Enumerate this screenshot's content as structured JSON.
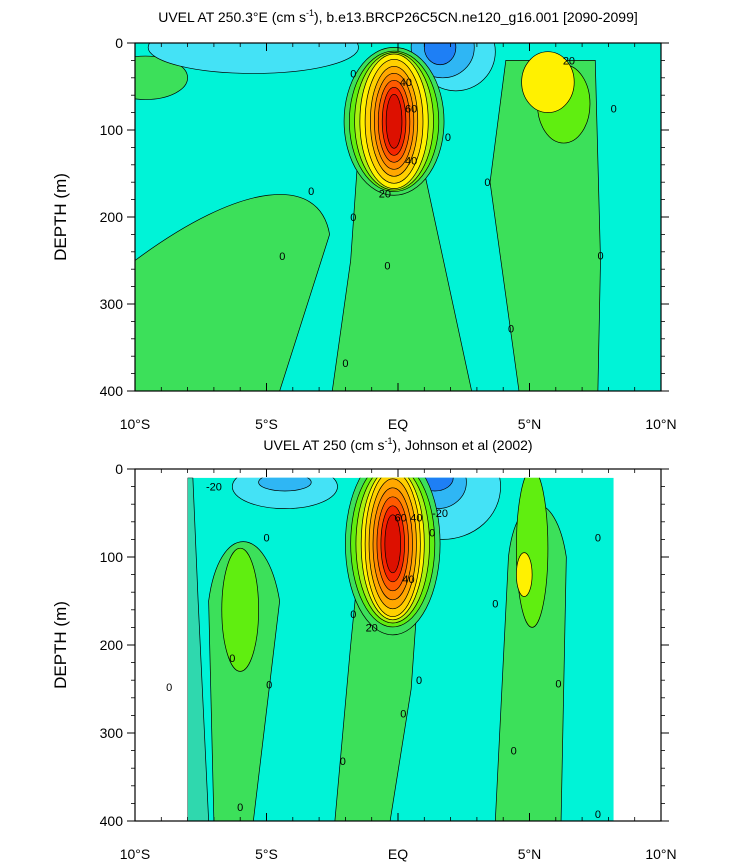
{
  "chart_data": [
    {
      "type": "heatmap",
      "title": "UVEL AT 250.3°E (cm s-1), b.e13.BRCP26C5CN.ne120_g16.001 [2090-2099]",
      "title_parts": {
        "pre": "UVEL AT 250.3°E (cm s",
        "sup": "-1",
        "post": "), b.e13.BRCP26C5CN.ne120_g16.001 [2090-2099]"
      },
      "xlabel": "",
      "ylabel": "DEPTH (m)",
      "x_ticks": [
        "10°S",
        "5°S",
        "EQ",
        "5°N",
        "10°N"
      ],
      "x_tick_values": [
        -10,
        -5,
        0,
        5,
        10
      ],
      "y_ticks": [
        "0",
        "100",
        "200",
        "300",
        "400"
      ],
      "y_tick_values": [
        0,
        100,
        200,
        300,
        400
      ],
      "xlim": [
        -10,
        10
      ],
      "ylim": [
        400,
        0
      ],
      "contour_interval": 5,
      "features": [
        {
          "label": "equatorial undercurrent core",
          "lat": -0.1,
          "depth": 90,
          "max_value": 70
        },
        {
          "label": "northern eastward jet",
          "lat": 5.5,
          "depth": 40,
          "max_value": 25
        },
        {
          "label": "westward surface flow",
          "lat": 1.7,
          "depth": 15,
          "min_value": -20
        }
      ],
      "contour_labels": [
        {
          "text": "0",
          "lat": -3.3,
          "depth": 170
        },
        {
          "text": "0",
          "lat": -4.4,
          "depth": 245
        },
        {
          "text": "0",
          "lat": -1.7,
          "depth": 35
        },
        {
          "text": "0",
          "lat": -1.7,
          "depth": 200
        },
        {
          "text": "0",
          "lat": -2.0,
          "depth": 368
        },
        {
          "text": "0",
          "lat": -0.4,
          "depth": 256
        },
        {
          "text": "0",
          "lat": 1.9,
          "depth": 108
        },
        {
          "text": "0",
          "lat": 3.4,
          "depth": 160
        },
        {
          "text": "0",
          "lat": 4.3,
          "depth": 328
        },
        {
          "text": "0",
          "lat": 7.7,
          "depth": 244
        },
        {
          "text": "0",
          "lat": 8.2,
          "depth": 75
        },
        {
          "text": "20",
          "lat": -0.5,
          "depth": 173
        },
        {
          "text": "40",
          "lat": 0.5,
          "depth": 135
        },
        {
          "text": "40",
          "lat": 0.3,
          "depth": 45
        },
        {
          "text": "60",
          "lat": 0.5,
          "depth": 75
        },
        {
          "text": "20",
          "lat": 6.5,
          "depth": 20
        }
      ]
    },
    {
      "type": "heatmap",
      "title": "UVEL AT 250 (cm s-1), Johnson et al (2002)",
      "title_parts": {
        "pre": "UVEL AT 250 (cm s",
        "sup": "-1",
        "post": "), Johnson et al (2002)"
      },
      "xlabel": "",
      "ylabel": "DEPTH (m)",
      "x_ticks": [
        "10°S",
        "5°S",
        "EQ",
        "5°N",
        "10°N"
      ],
      "x_tick_values": [
        -10,
        -5,
        0,
        5,
        10
      ],
      "y_ticks": [
        "0",
        "100",
        "200",
        "300",
        "400"
      ],
      "y_tick_values": [
        0,
        100,
        200,
        300,
        400
      ],
      "xlim": [
        -10,
        10
      ],
      "ylim": [
        400,
        0
      ],
      "data_extent": {
        "lat": [
          -8,
          8.2
        ],
        "depth": [
          10,
          400
        ]
      },
      "contour_interval": 5,
      "features": [
        {
          "label": "equatorial undercurrent core",
          "lat": -0.2,
          "depth": 75,
          "max_value": 70
        },
        {
          "label": "southern eastward band",
          "lat": -6.0,
          "depth": 150,
          "max_value": 10
        },
        {
          "label": "northern eastward band",
          "lat": 4.8,
          "depth": 100,
          "max_value": 15
        },
        {
          "label": "westward surface flow",
          "lat": 1.4,
          "depth": 15,
          "min_value": -25
        }
      ],
      "contour_labels": [
        {
          "text": "-20",
          "lat": -7.0,
          "depth": 20
        },
        {
          "text": "-20",
          "lat": 1.6,
          "depth": 50
        },
        {
          "text": "20",
          "lat": -1.0,
          "depth": 180
        },
        {
          "text": "40",
          "lat": 0.4,
          "depth": 125
        },
        {
          "text": "60",
          "lat": 0.1,
          "depth": 55
        },
        {
          "text": "40",
          "lat": 0.7,
          "depth": 55
        },
        {
          "text": "0",
          "lat": -5.0,
          "depth": 78
        },
        {
          "text": "0",
          "lat": -6.3,
          "depth": 215
        },
        {
          "text": "0",
          "lat": -4.9,
          "depth": 245
        },
        {
          "text": "0",
          "lat": -8.7,
          "depth": 248
        },
        {
          "text": "0",
          "lat": -6.0,
          "depth": 384
        },
        {
          "text": "0",
          "lat": -1.7,
          "depth": 165
        },
        {
          "text": "0",
          "lat": -2.1,
          "depth": 332
        },
        {
          "text": "0",
          "lat": 0.8,
          "depth": 240
        },
        {
          "text": "0",
          "lat": 0.2,
          "depth": 278
        },
        {
          "text": "0",
          "lat": 1.3,
          "depth": 72
        },
        {
          "text": "0",
          "lat": 3.7,
          "depth": 153
        },
        {
          "text": "0",
          "lat": 4.4,
          "depth": 320
        },
        {
          "text": "0",
          "lat": 6.1,
          "depth": 244
        },
        {
          "text": "0",
          "lat": 7.6,
          "depth": 78
        },
        {
          "text": "0",
          "lat": 7.6,
          "depth": 392
        }
      ]
    }
  ],
  "colors": {
    "background": "#ffffff",
    "levels": [
      "#0044dd",
      "#1e7ff5",
      "#2fb6f4",
      "#44e2f6",
      "#00f3d7",
      "#2fd8ae",
      "#3ce05a",
      "#60ee10",
      "#a9f010",
      "#fff100",
      "#ffd000",
      "#ffa800",
      "#ff8800",
      "#ff5a00",
      "#f52400",
      "#dd1000"
    ]
  }
}
